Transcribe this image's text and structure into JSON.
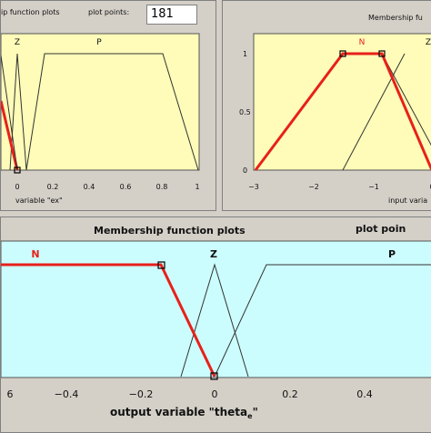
{
  "top_left": {
    "header_title": "ip function plots",
    "plot_points_label": "plot points:",
    "plot_points_value": "181",
    "mf_labels": [
      "Z",
      "P"
    ],
    "x_ticks": [
      "0",
      "0.2",
      "0.4",
      "0.6",
      "0.8",
      "1"
    ],
    "xlabel": "variable \"ex\""
  },
  "top_right": {
    "header_title": "Membership fu",
    "mf_labels": [
      "N",
      "Z"
    ],
    "x_ticks": [
      "−3",
      "−2",
      "−1",
      "0"
    ],
    "y_ticks": [
      "1",
      "0.5",
      "0"
    ],
    "xlabel": "input varia"
  },
  "bottom": {
    "header_title": "Membership function plots",
    "plot_points_label": "plot poin",
    "mf_labels": [
      "N",
      "Z",
      "P"
    ],
    "x_ticks": [
      "6",
      "−0.4",
      "−0.2",
      "0",
      "0.2",
      "0.4"
    ],
    "xlabel_main": "output variable \"theta",
    "xlabel_sub": "e",
    "xlabel_end": "\""
  },
  "colors": {
    "plot_bg_top": "#fefcb8",
    "plot_bg_bottom": "#ccfdfe",
    "selected": "#e8201a",
    "other": "#333333"
  },
  "chart_data": [
    {
      "type": "line",
      "series": [
        {
          "values_x": [
            0.0,
            0.02,
            0.05
          ],
          "values_y": [
            0,
            1,
            0
          ]
        },
        {
          "values_x": [
            0.05,
            0.16,
            0.75,
            1.0
          ],
          "values_y": [
            0,
            1,
            1,
            0
          ]
        },
        {
          "values_x": [
            -0.1,
            0.0
          ],
          "values_y": [
            0.6,
            0
          ]
        }
      ]
    },
    {
      "type": "line",
      "series": [
        {
          "values_x": [
            -3.0,
            -1.5,
            -1.0,
            0.0
          ],
          "values_y": [
            0,
            1,
            1,
            0
          ]
        },
        {
          "values_x": [
            -1.5,
            -0.5
          ],
          "values_y": [
            0,
            1
          ]
        },
        {
          "values_x": [
            -1.0,
            0.0
          ],
          "values_y": [
            0,
            1
          ]
        }
      ]
    },
    {
      "type": "line",
      "series": [
        {
          "values_x": [
            -0.6,
            -0.5,
            -0.15,
            0.0
          ],
          "values_y": [
            1,
            1,
            1,
            0
          ]
        },
        {
          "values_x": [
            -0.1,
            0.0,
            0.1
          ],
          "values_y": [
            0,
            1,
            0
          ]
        },
        {
          "values_x": [
            0.0,
            0.15,
            0.6
          ],
          "values_y": [
            0,
            1,
            1
          ]
        }
      ]
    }
  ]
}
